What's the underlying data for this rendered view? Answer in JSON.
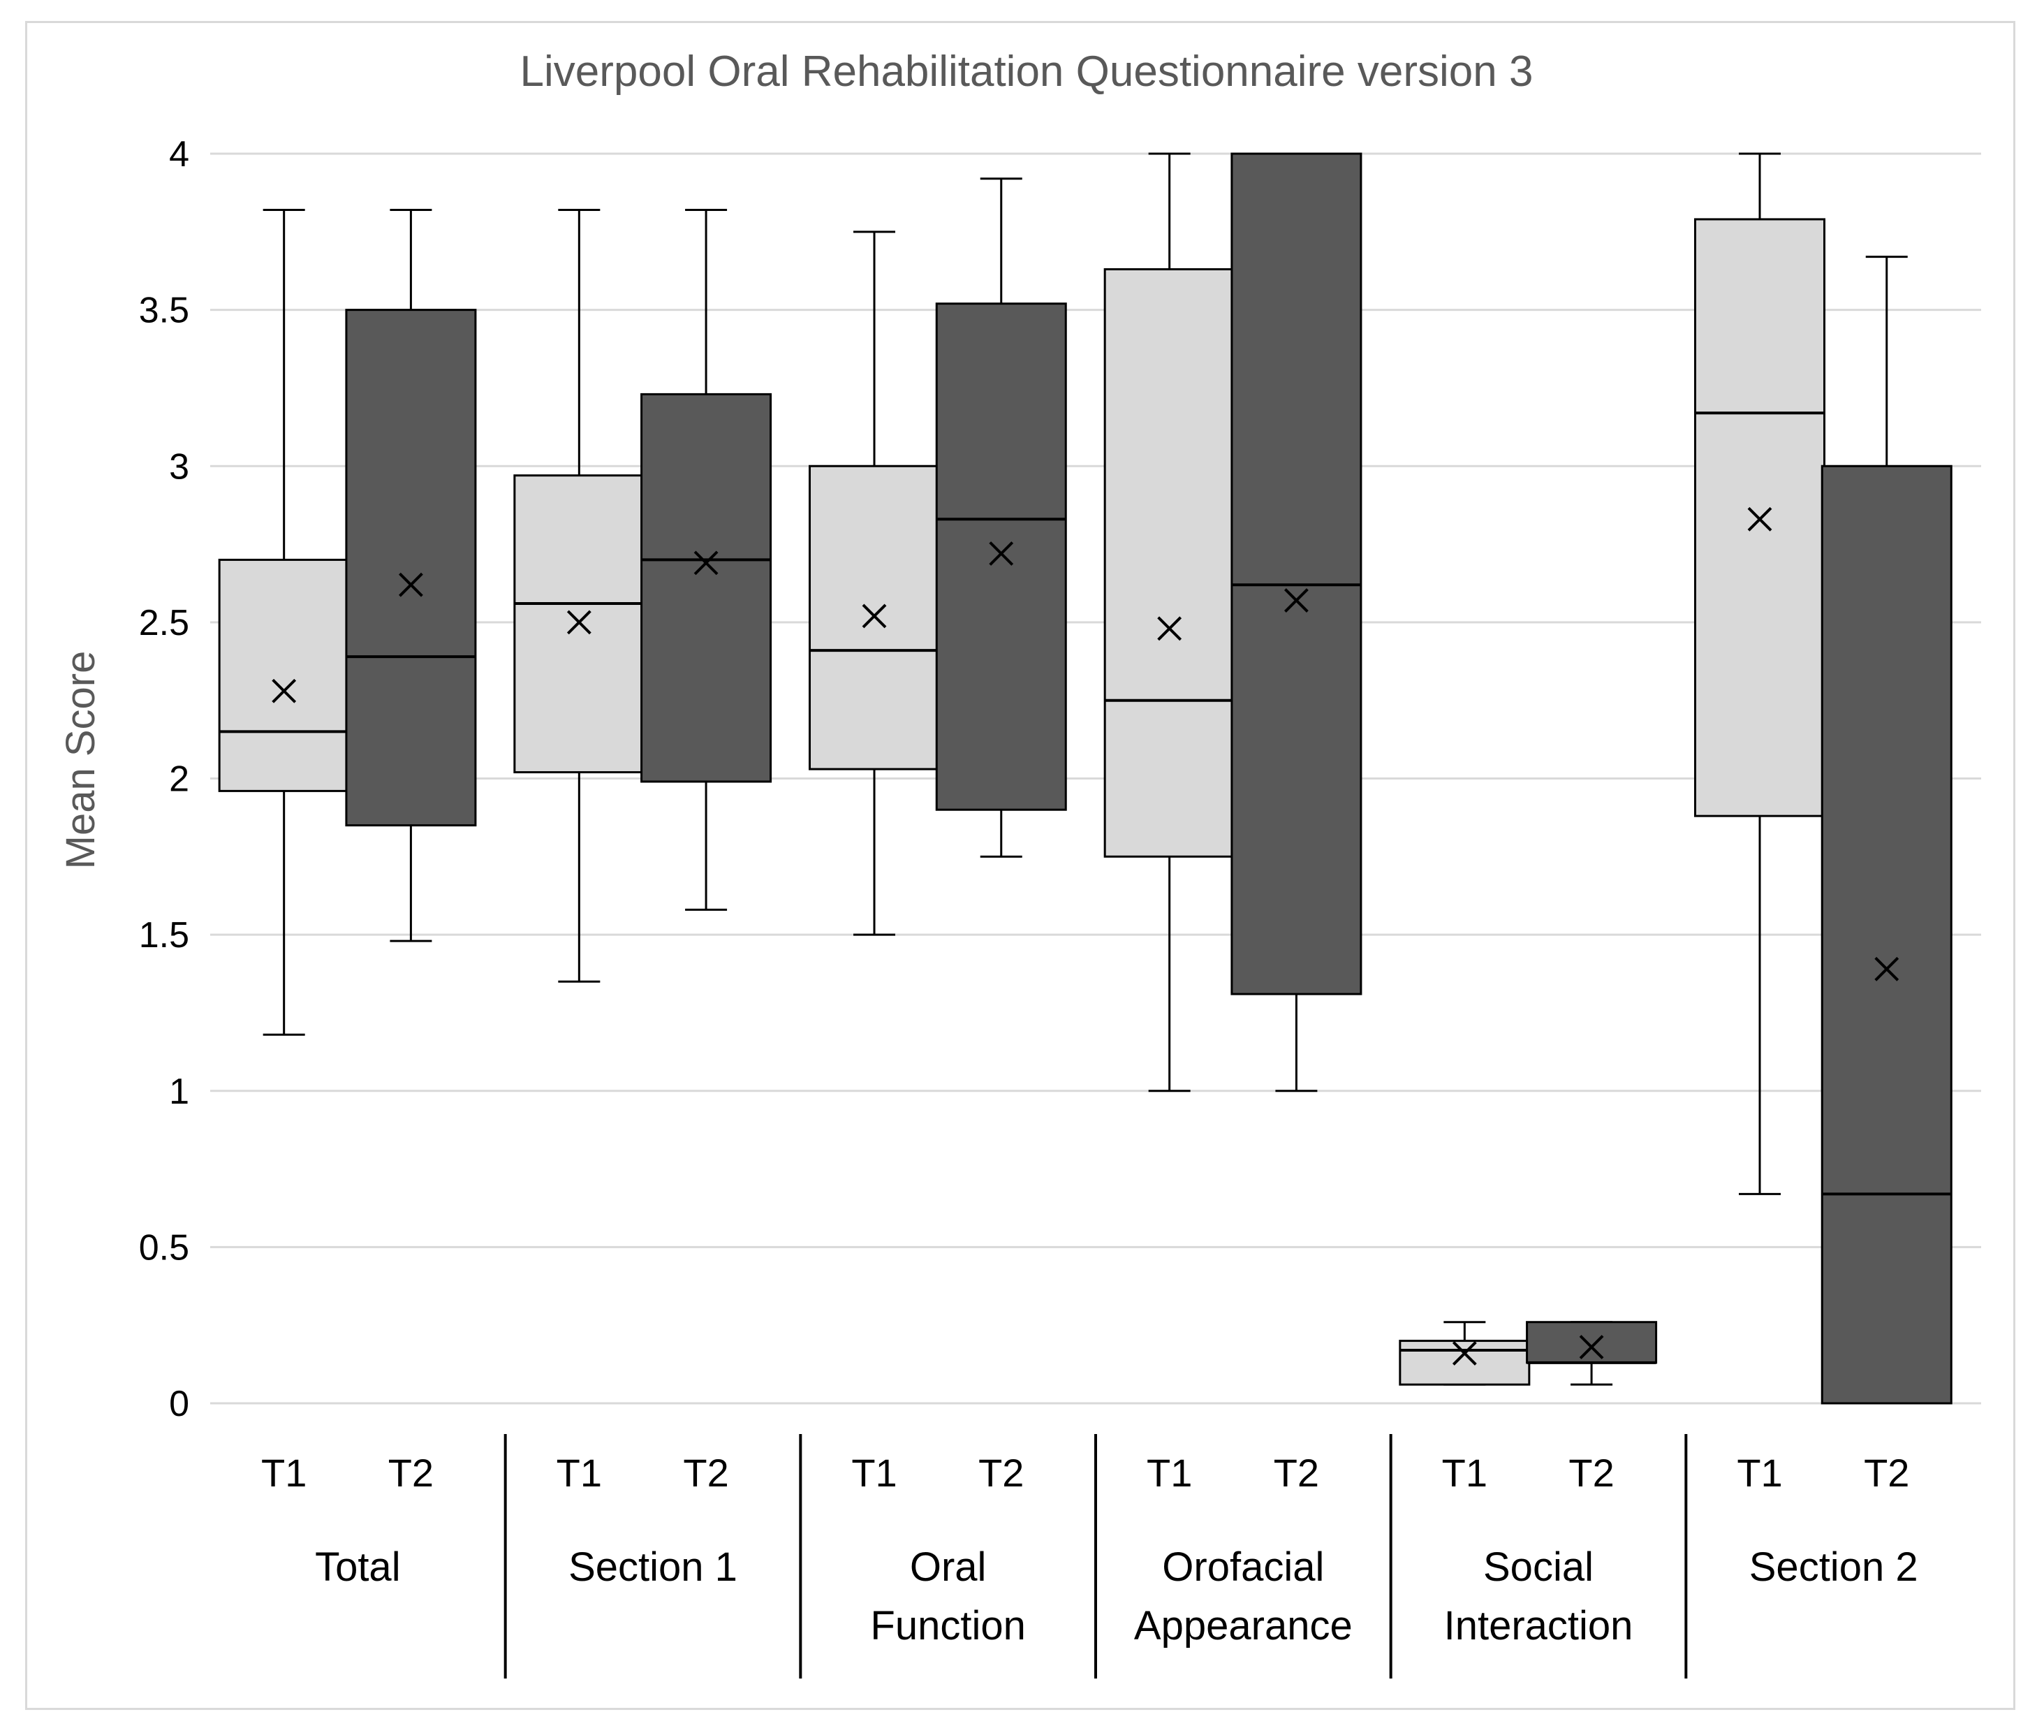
{
  "chart_data": {
    "type": "box",
    "title": "Liverpool Oral Rehabilitation Questionnaire version 3",
    "ylabel": "Mean Score",
    "xlabel": "",
    "ylim": [
      0,
      4
    ],
    "yticks": [
      "0",
      "0.5",
      "1",
      "1.5",
      "2",
      "2.5",
      "3",
      "3.5",
      "4"
    ],
    "grid": true,
    "colors": {
      "T1": "#d9d9d9",
      "T2": "#595959",
      "grid": "#d9d9d9",
      "edge": "#000000"
    },
    "groups": [
      {
        "label_lines": [
          "Total"
        ],
        "boxes": [
          {
            "label": "T1",
            "min": 1.18,
            "q1": 1.96,
            "median": 2.15,
            "q3": 2.7,
            "max": 3.82,
            "mean": 2.28
          },
          {
            "label": "T2",
            "min": 1.48,
            "q1": 1.85,
            "median": 2.39,
            "q3": 3.5,
            "max": 3.82,
            "mean": 2.62
          }
        ]
      },
      {
        "label_lines": [
          "Section 1"
        ],
        "boxes": [
          {
            "label": "T1",
            "min": 1.35,
            "q1": 2.02,
            "median": 2.56,
            "q3": 2.97,
            "max": 3.82,
            "mean": 2.5
          },
          {
            "label": "T2",
            "min": 1.58,
            "q1": 1.99,
            "median": 2.7,
            "q3": 3.23,
            "max": 3.82,
            "mean": 2.69
          }
        ]
      },
      {
        "label_lines": [
          "Oral",
          "Function"
        ],
        "boxes": [
          {
            "label": "T1",
            "min": 1.5,
            "q1": 2.03,
            "median": 2.41,
            "q3": 3.0,
            "max": 3.75,
            "mean": 2.52
          },
          {
            "label": "T2",
            "min": 1.75,
            "q1": 1.9,
            "median": 2.83,
            "q3": 3.52,
            "max": 3.92,
            "mean": 2.72
          }
        ]
      },
      {
        "label_lines": [
          "Orofacial",
          "Appearance"
        ],
        "boxes": [
          {
            "label": "T1",
            "min": 1.0,
            "q1": 1.75,
            "median": 2.25,
            "q3": 3.63,
            "max": 4.0,
            "mean": 2.48
          },
          {
            "label": "T2",
            "min": 1.0,
            "q1": 1.31,
            "median": 2.62,
            "q3": 4.0,
            "max": 4.0,
            "mean": 2.57
          }
        ]
      },
      {
        "label_lines": [
          "Social",
          "Interaction"
        ],
        "boxes": [
          {
            "label": "T1",
            "min": 0.06,
            "q1": 0.06,
            "median": 0.17,
            "q3": 0.2,
            "max": 0.26,
            "mean": 0.16
          },
          {
            "label": "T2",
            "min": 0.06,
            "q1": 0.13,
            "median": 0.13,
            "q3": 0.26,
            "max": 0.26,
            "mean": 0.18
          }
        ]
      },
      {
        "label_lines": [
          "Section 2"
        ],
        "boxes": [
          {
            "label": "T1",
            "min": 0.67,
            "q1": 1.88,
            "median": 3.17,
            "q3": 3.79,
            "max": 4.0,
            "mean": 2.83
          },
          {
            "label": "T2",
            "min": 0.0,
            "q1": 0.0,
            "median": 0.67,
            "q3": 3.0,
            "max": 3.67,
            "mean": 1.39
          }
        ]
      }
    ]
  }
}
